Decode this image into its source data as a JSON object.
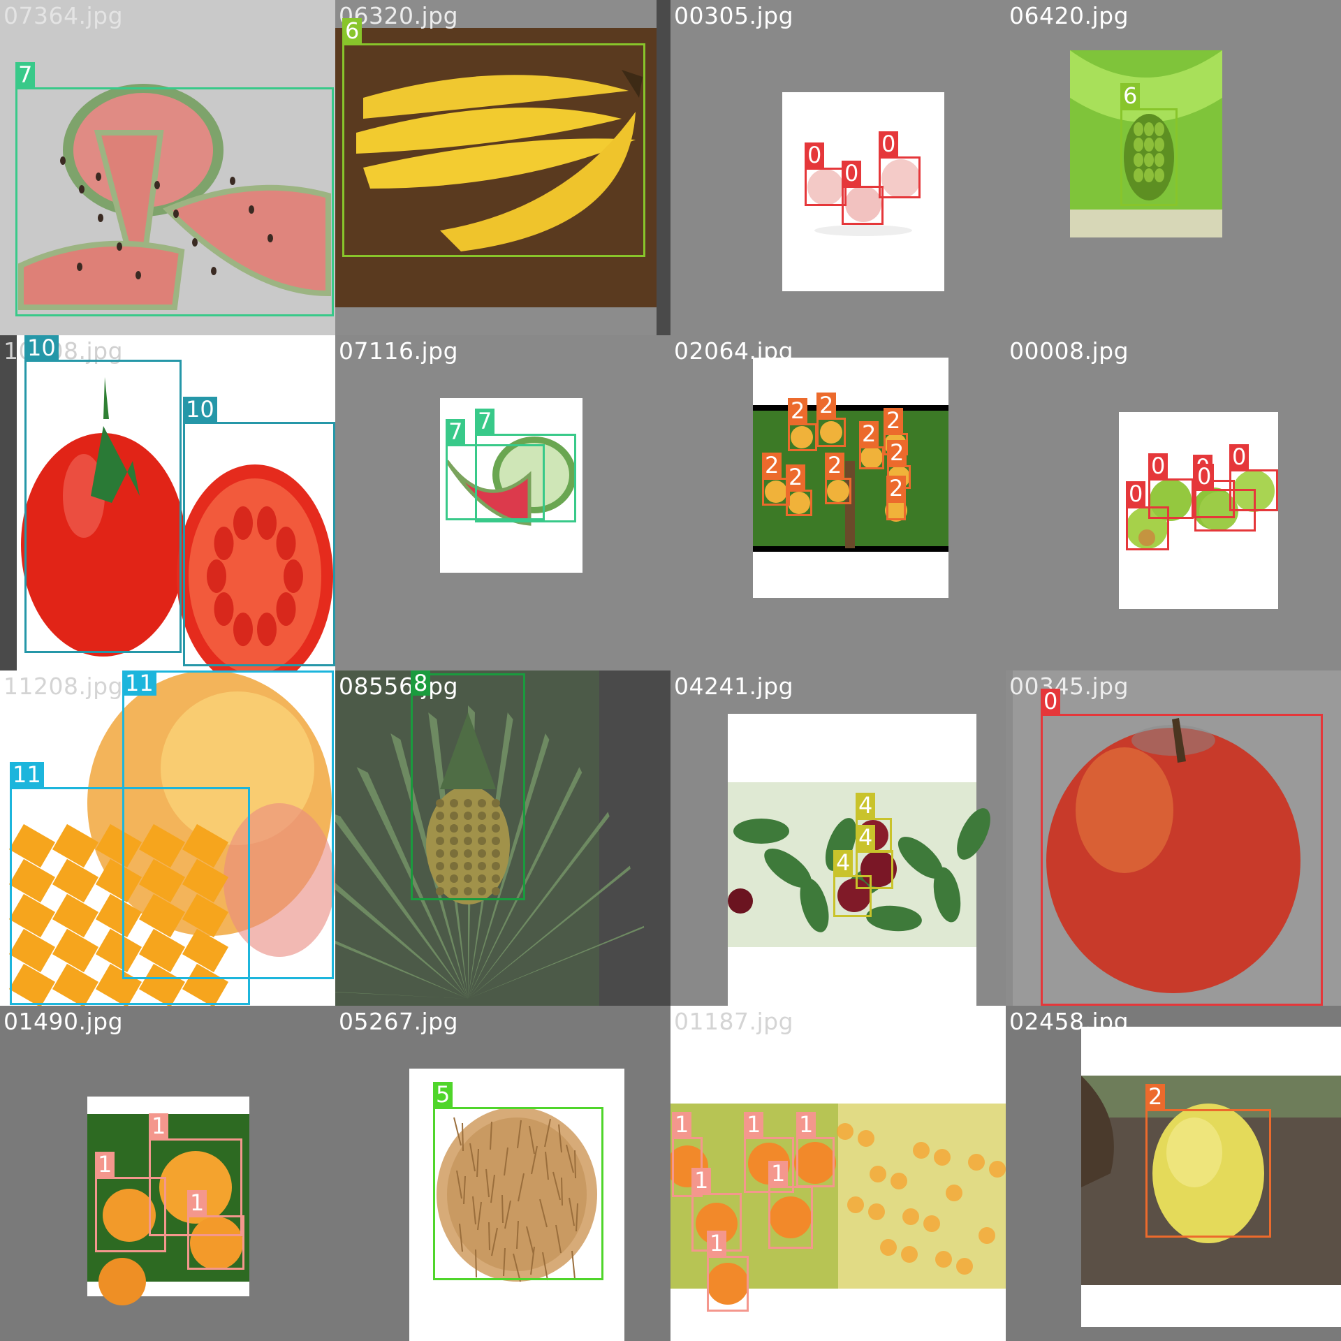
{
  "classes": {
    "0": "#e5373a",
    "1": "#f4978d",
    "2": "#ec6a2c",
    "4": "#c9c32b",
    "5": "#4fd52a",
    "6": "#88c52b",
    "7": "#38c989",
    "8": "#1a9b3e",
    "10": "#2597a8",
    "11": "#1cb5dc"
  },
  "tiles": [
    {
      "file": "07364.jpg",
      "scene": "watermelon-slices",
      "boxes": [
        {
          "class": "7"
        }
      ]
    },
    {
      "file": "06320.jpg",
      "scene": "banana-bunch",
      "boxes": [
        {
          "class": "6"
        }
      ]
    },
    {
      "file": "00305.jpg",
      "scene": "three-peaches",
      "boxes": [
        {
          "class": "0"
        },
        {
          "class": "0"
        },
        {
          "class": "0"
        }
      ]
    },
    {
      "file": "06420.jpg",
      "scene": "banana-tree",
      "boxes": [
        {
          "class": "6"
        }
      ]
    },
    {
      "file": "10008.jpg",
      "scene": "tomatoes",
      "boxes": [
        {
          "class": "10"
        },
        {
          "class": "10"
        }
      ]
    },
    {
      "file": "07116.jpg",
      "scene": "small-watermelon",
      "boxes": [
        {
          "class": "7"
        },
        {
          "class": "7"
        }
      ]
    },
    {
      "file": "02064.jpg",
      "scene": "orange-tree",
      "boxes": [
        {
          "class": "2"
        },
        {
          "class": "2"
        },
        {
          "class": "2"
        },
        {
          "class": "2"
        },
        {
          "class": "2"
        },
        {
          "class": "2"
        },
        {
          "class": "2"
        },
        {
          "class": "2"
        },
        {
          "class": "2"
        }
      ]
    },
    {
      "file": "00008.jpg",
      "scene": "green-apples",
      "boxes": [
        {
          "class": "0"
        },
        {
          "class": "0"
        },
        {
          "class": "0"
        },
        {
          "class": "0"
        },
        {
          "class": "0"
        }
      ]
    },
    {
      "file": "11208.jpg",
      "scene": "mango",
      "boxes": [
        {
          "class": "11"
        },
        {
          "class": "11"
        }
      ]
    },
    {
      "file": "08556.jpg",
      "scene": "pineapple-plant",
      "boxes": [
        {
          "class": "8"
        }
      ]
    },
    {
      "file": "04241.jpg",
      "scene": "cherries-on-branch",
      "boxes": [
        {
          "class": "4"
        },
        {
          "class": "4"
        },
        {
          "class": "4"
        }
      ]
    },
    {
      "file": "00345.jpg",
      "scene": "red-apple",
      "boxes": [
        {
          "class": "0"
        }
      ]
    },
    {
      "file": "01490.jpg",
      "scene": "orange-cluster",
      "boxes": [
        {
          "class": "1"
        },
        {
          "class": "1"
        },
        {
          "class": "1"
        }
      ]
    },
    {
      "file": "05267.jpg",
      "scene": "coconut",
      "boxes": [
        {
          "class": "5"
        }
      ]
    },
    {
      "file": "01187.jpg",
      "scene": "orange-orchard",
      "boxes": [
        {
          "class": "1"
        },
        {
          "class": "1"
        },
        {
          "class": "1"
        },
        {
          "class": "1"
        },
        {
          "class": "1"
        },
        {
          "class": "1"
        }
      ]
    },
    {
      "file": "02458.jpg",
      "scene": "lemon",
      "boxes": [
        {
          "class": "2"
        }
      ]
    }
  ]
}
